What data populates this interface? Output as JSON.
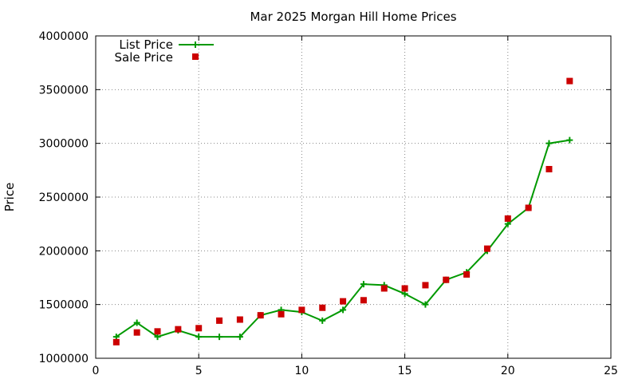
{
  "chart_data": {
    "type": "line",
    "title": "Mar 2025 Morgan Hill Home Prices",
    "xlabel": "",
    "ylabel": "Price",
    "xlim": [
      0,
      25
    ],
    "ylim": [
      1000000,
      4000000
    ],
    "xticks": [
      0,
      5,
      10,
      15,
      20,
      25
    ],
    "yticks": [
      1000000,
      1500000,
      2000000,
      2500000,
      3000000,
      3500000,
      4000000
    ],
    "grid": true,
    "legend_position": "top-left",
    "series": [
      {
        "name": "List Price",
        "style": "line-with-plus-markers",
        "color": "#009900",
        "x": [
          1,
          2,
          3,
          4,
          5,
          6,
          7,
          8,
          9,
          10,
          11,
          12,
          13,
          14,
          15,
          16,
          17,
          18,
          19,
          20,
          21,
          22,
          23
        ],
        "values": [
          1200000,
          1330000,
          1200000,
          1260000,
          1200000,
          1200000,
          1200000,
          1400000,
          1450000,
          1430000,
          1350000,
          1450000,
          1690000,
          1680000,
          1600000,
          1500000,
          1730000,
          1800000,
          2000000,
          2250000,
          2400000,
          3000000,
          3030000
        ]
      },
      {
        "name": "Sale Price",
        "style": "square-markers",
        "color": "#cc0000",
        "x": [
          1,
          2,
          3,
          4,
          5,
          6,
          7,
          8,
          9,
          10,
          11,
          12,
          13,
          14,
          15,
          16,
          17,
          18,
          19,
          20,
          21,
          22,
          23
        ],
        "values": [
          1150000,
          1240000,
          1250000,
          1270000,
          1280000,
          1350000,
          1360000,
          1400000,
          1410000,
          1450000,
          1470000,
          1530000,
          1540000,
          1650000,
          1650000,
          1680000,
          1730000,
          1780000,
          2020000,
          2300000,
          2400000,
          2760000,
          3580000
        ]
      }
    ]
  }
}
